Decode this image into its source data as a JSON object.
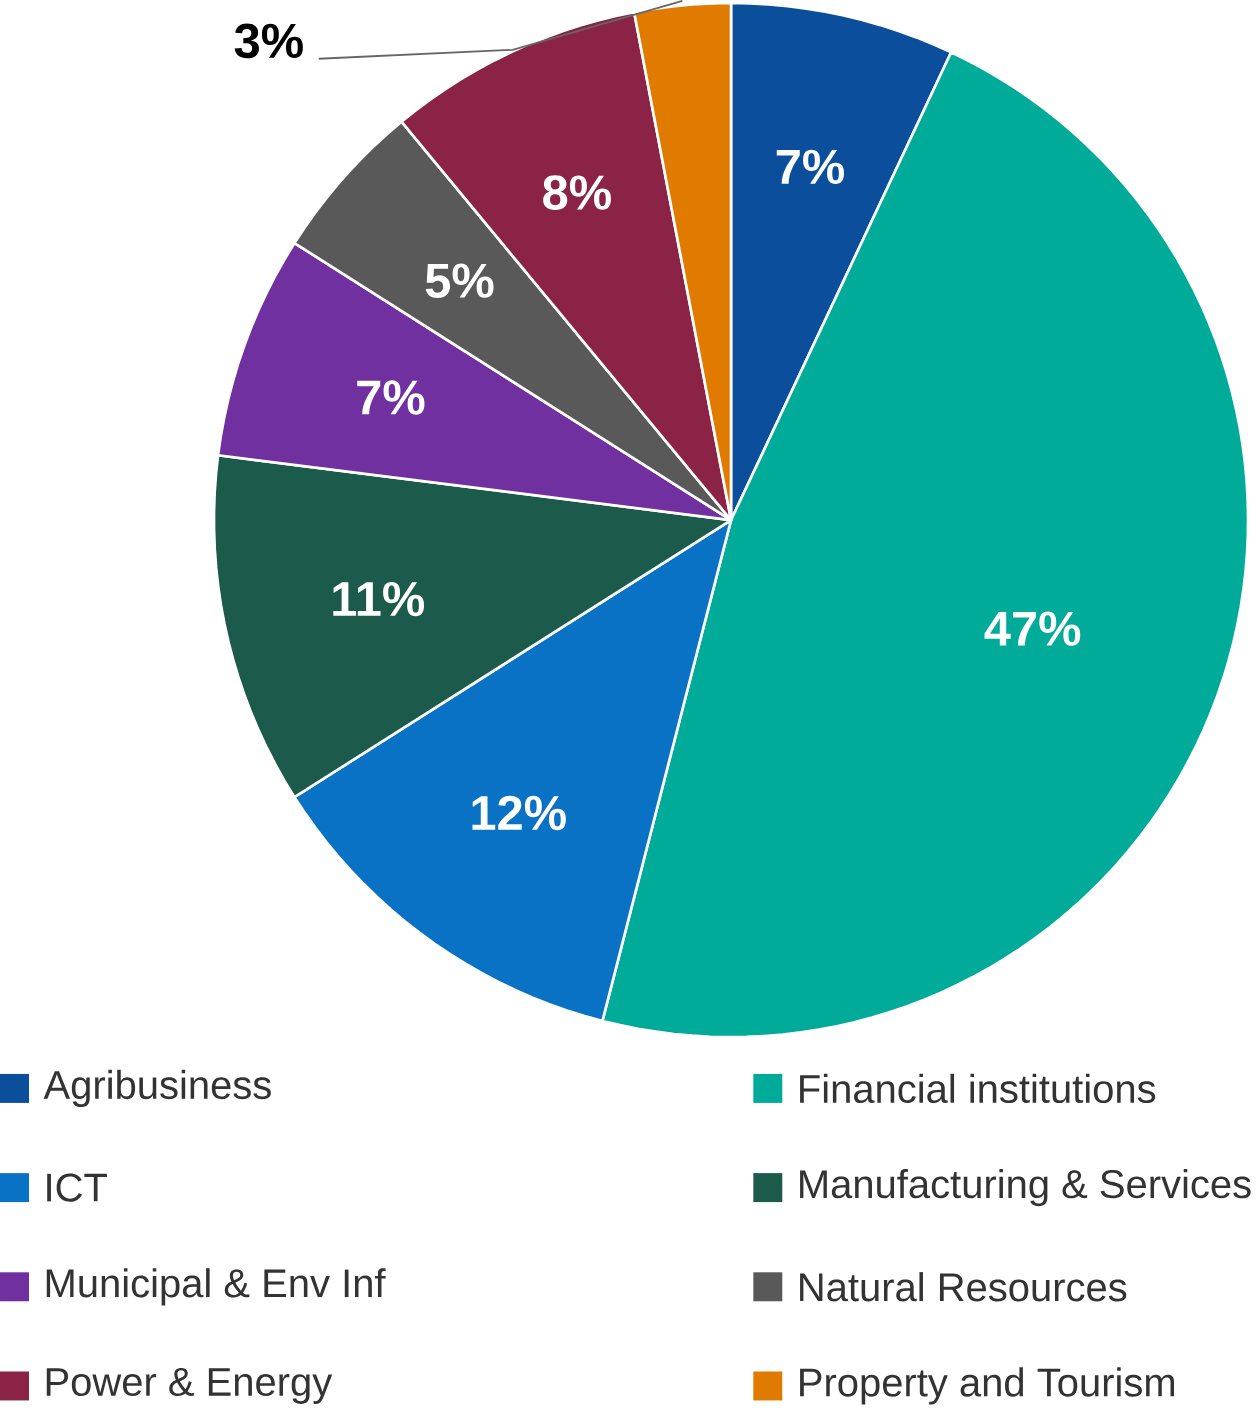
{
  "chart_data": {
    "type": "pie",
    "categories": [
      "Agribusiness",
      "Financial institutions",
      "ICT",
      "Manufacturing & Services",
      "Municipal & Env Inf",
      "Natural Resources",
      "Power & Energy",
      "Property and Tourism"
    ],
    "values": [
      7,
      47,
      12,
      11,
      7,
      5,
      8,
      3
    ],
    "value_labels": [
      "7%",
      "47%",
      "12%",
      "11%",
      "7%",
      "5%",
      "8%",
      "3%"
    ],
    "colors": [
      "#0b4f9c",
      "#00ab9a",
      "#0a72c4",
      "#1c5a4c",
      "#7030a0",
      "#595959",
      "#8b2346",
      "#e07b00"
    ],
    "legend": "bottom"
  }
}
